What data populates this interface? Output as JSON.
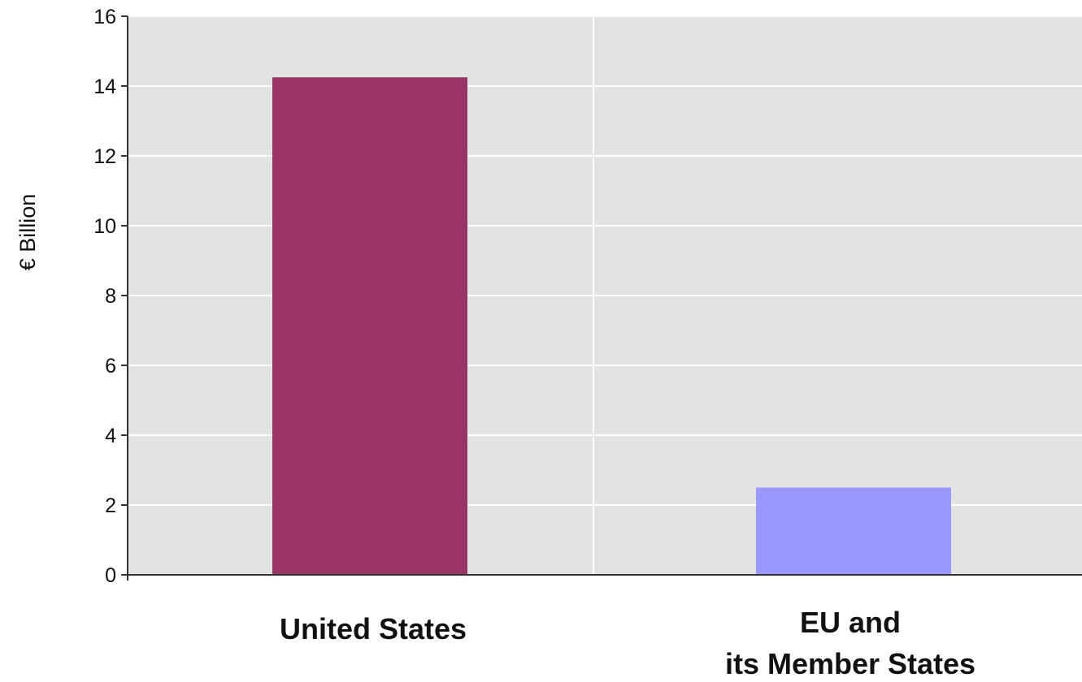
{
  "chart_data": {
    "type": "bar",
    "ylabel": "€ Billion",
    "xlabel": "",
    "ylim": [
      0,
      16
    ],
    "yticks": [
      0,
      2,
      4,
      6,
      8,
      10,
      12,
      14,
      16
    ],
    "grid": true,
    "categories": [
      [
        "United States"
      ],
      [
        "EU and",
        "its Member States"
      ]
    ],
    "values": [
      14.25,
      2.5
    ],
    "colors": [
      "#993366",
      "#9999ff"
    ],
    "plot_background": "#e3e3e3",
    "grid_color": "#ffffff"
  }
}
